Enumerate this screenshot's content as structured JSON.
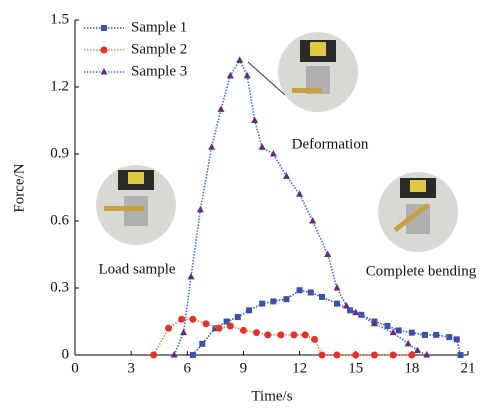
{
  "chart_data": {
    "type": "line",
    "x_label": "Time/s",
    "y_label": "Force/N",
    "xlim": [
      0,
      21
    ],
    "xticks": [
      0,
      3,
      6,
      9,
      12,
      15,
      18,
      21
    ],
    "ylim": [
      0,
      1.5
    ],
    "yticks": [
      0,
      0.3,
      0.6,
      0.9,
      1.2,
      1.5
    ],
    "legend": "upper left",
    "annotations": [
      "Deformation",
      "Load sample",
      "Complete bending"
    ],
    "series": [
      {
        "name": "Sample 1",
        "color": "#3a52a8",
        "marker": "square",
        "x": [
          6.3,
          6.8,
          7.5,
          8.1,
          8.7,
          9.3,
          10,
          10.6,
          11.3,
          12,
          12.6,
          13.2,
          14,
          14.7,
          15.3,
          16,
          16.7,
          17.3,
          18,
          18.7,
          19.3,
          20,
          20.4,
          20.6
        ],
        "values": [
          0,
          0.05,
          0.12,
          0.15,
          0.17,
          0.2,
          0.23,
          0.24,
          0.25,
          0.29,
          0.28,
          0.26,
          0.23,
          0.2,
          0.18,
          0.15,
          0.13,
          0.11,
          0.1,
          0.09,
          0.09,
          0.08,
          0.07,
          0
        ]
      },
      {
        "name": "Sample 2",
        "color": "#f08a3c",
        "marker": "circle",
        "x": [
          4.2,
          5,
          5.7,
          6.3,
          7,
          7.7,
          8.3,
          9,
          9.7,
          10.3,
          11,
          11.7,
          12.3,
          12.8,
          13.2,
          14,
          15,
          16,
          17,
          18
        ],
        "values": [
          0,
          0.12,
          0.16,
          0.16,
          0.14,
          0.12,
          0.13,
          0.11,
          0.1,
          0.09,
          0.09,
          0.09,
          0.09,
          0.07,
          0,
          0,
          0,
          0,
          0,
          0
        ]
      },
      {
        "name": "Sample 3",
        "color": "#3d6fdc",
        "marker": "triangle",
        "x": [
          5.3,
          5.8,
          6.2,
          6.7,
          7.3,
          7.8,
          8.3,
          8.8,
          9.2,
          9.6,
          10,
          10.6,
          11.3,
          12,
          12.7,
          13.5,
          14,
          14.5,
          15,
          16,
          17,
          17.8,
          18.3,
          18.8
        ],
        "values": [
          0,
          0.1,
          0.35,
          0.65,
          0.93,
          1.1,
          1.25,
          1.32,
          1.25,
          1.05,
          0.93,
          0.9,
          0.8,
          0.72,
          0.6,
          0.45,
          0.3,
          0.22,
          0.19,
          0.14,
          0.1,
          0.05,
          0.02,
          0
        ]
      }
    ]
  }
}
